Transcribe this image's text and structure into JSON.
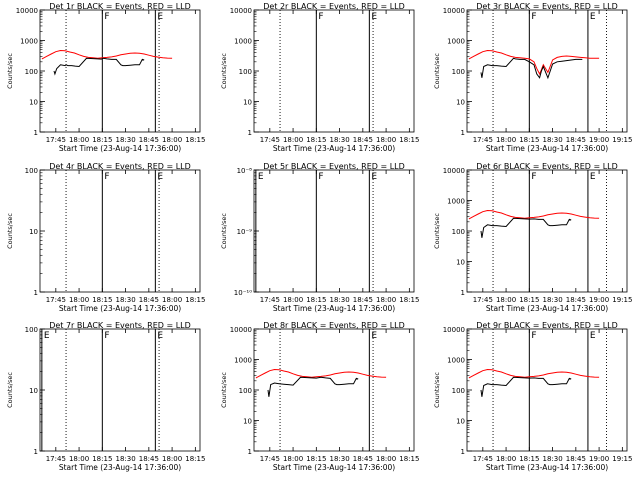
{
  "figure": {
    "xlabel": "Start Time (23-Aug-14 17:36:00)",
    "ylabel": "Counts/sec",
    "x_tick_labels_a": [
      "17:45",
      "18:00",
      "18:15",
      "18:30",
      "18:45",
      "19:00",
      "19:15"
    ],
    "x_tick_labels_b": [
      "17:45",
      "18:00",
      "18:15",
      "18:30",
      "18:45",
      "18:00",
      "18:15"
    ],
    "colors": {
      "events": "#000000",
      "lld": "#ff0000",
      "axes": "#000000"
    }
  },
  "chart_data": [
    {
      "type": "line",
      "title": "Det 1r BLACK = Events, RED = LLD",
      "xlim": [
        17.58,
        19.3
      ],
      "ylim": [
        1,
        10000
      ],
      "log_y": true,
      "y_tick_labels": [
        "10000",
        "1000",
        "100",
        "10",
        "1"
      ],
      "x_tick_set": "b",
      "has_data": true,
      "markers": [
        {
          "label": "F",
          "x": 18.25
        },
        {
          "label": "E",
          "x": 18.82
        }
      ],
      "dotted_lines": [
        17.86,
        18.86
      ],
      "events_series": {
        "name": "Events",
        "x": [
          17.73,
          17.74,
          17.76,
          17.8,
          17.85,
          17.86,
          17.88,
          17.92,
          17.96,
          18.0,
          18.08,
          18.15,
          18.2,
          18.24,
          18.26,
          18.3,
          18.35,
          18.4,
          18.45,
          18.47,
          18.5,
          18.55,
          18.6,
          18.65,
          18.68,
          18.7
        ],
        "y": [
          100,
          80,
          120,
          160,
          150,
          160,
          150,
          150,
          145,
          140,
          260,
          255,
          250,
          245,
          260,
          250,
          240,
          240,
          160,
          150,
          150,
          155,
          160,
          160,
          240,
          230
        ]
      },
      "lld_series": {
        "name": "LLD",
        "x": [
          17.6,
          17.65,
          17.7,
          17.75,
          17.8,
          17.85,
          17.9,
          17.95,
          18.0,
          18.05,
          18.1,
          18.15,
          18.2,
          18.25,
          18.3,
          18.35,
          18.4,
          18.45,
          18.5,
          18.55,
          18.6,
          18.65,
          18.7,
          18.75,
          18.8,
          18.85,
          18.9,
          18.95,
          19.0
        ],
        "y": [
          250,
          300,
          360,
          430,
          470,
          460,
          420,
          390,
          340,
          300,
          280,
          270,
          260,
          270,
          280,
          290,
          310,
          340,
          360,
          380,
          390,
          380,
          360,
          330,
          300,
          285,
          270,
          265,
          260
        ]
      }
    },
    {
      "type": "line",
      "title": "Det 2r BLACK = Events, RED = LLD",
      "xlim": [
        17.58,
        19.3
      ],
      "ylim": [
        1,
        10000
      ],
      "log_y": true,
      "y_tick_labels": [
        "10000",
        "1000",
        "100",
        "10",
        "1"
      ],
      "x_tick_set": "b",
      "has_data": false,
      "markers": [
        {
          "label": "F",
          "x": 18.25
        },
        {
          "label": "E",
          "x": 18.82
        }
      ],
      "dotted_lines": [
        17.86,
        18.86
      ]
    },
    {
      "type": "line",
      "title": "Det 3r BLACK = Events, RED = LLD",
      "xlim": [
        17.58,
        19.3
      ],
      "ylim": [
        1,
        10000
      ],
      "log_y": true,
      "y_tick_labels": [
        "10000",
        "1000",
        "100",
        "10",
        "1"
      ],
      "x_tick_set": "a",
      "has_data": true,
      "markers": [
        {
          "label": "F",
          "x": 18.25
        },
        {
          "label": "E",
          "x": 18.88
        }
      ],
      "dotted_lines": [
        17.86,
        19.08
      ],
      "events_series": {
        "name": "Events",
        "x": [
          17.73,
          17.74,
          17.76,
          17.8,
          17.85,
          17.9,
          17.95,
          18.0,
          18.08,
          18.1,
          18.15,
          18.2,
          18.25,
          18.3,
          18.33,
          18.36,
          18.38,
          18.4,
          18.45,
          18.5,
          18.55,
          18.6,
          18.65,
          18.7,
          18.75,
          18.82
        ],
        "y": [
          90,
          60,
          140,
          160,
          150,
          150,
          145,
          140,
          260,
          250,
          240,
          240,
          200,
          160,
          80,
          60,
          100,
          140,
          60,
          170,
          200,
          210,
          220,
          230,
          240,
          240
        ]
      },
      "lld_series": {
        "name": "LLD",
        "x": [
          17.6,
          17.65,
          17.7,
          17.75,
          17.8,
          17.85,
          17.9,
          17.95,
          18.0,
          18.05,
          18.1,
          18.15,
          18.2,
          18.25,
          18.3,
          18.33,
          18.36,
          18.38,
          18.4,
          18.45,
          18.5,
          18.55,
          18.6,
          18.65,
          18.7,
          18.75,
          18.8,
          18.85,
          18.9,
          18.95,
          19.0
        ],
        "y": [
          250,
          300,
          360,
          430,
          470,
          460,
          420,
          390,
          340,
          300,
          280,
          270,
          260,
          250,
          200,
          120,
          80,
          110,
          160,
          90,
          230,
          280,
          300,
          310,
          300,
          290,
          280,
          270,
          260,
          260,
          260
        ]
      }
    },
    {
      "type": "line",
      "title": "Det 4r BLACK = Events, RED = LLD",
      "xlim": [
        17.58,
        19.3
      ],
      "ylim": [
        1,
        100
      ],
      "log_y": true,
      "y_tick_labels": [
        "100",
        "10",
        "1"
      ],
      "x_tick_set": "b",
      "has_data": false,
      "markers": [
        {
          "label": "F",
          "x": 18.25
        },
        {
          "label": "E",
          "x": 18.82
        }
      ],
      "dotted_lines": [
        17.86,
        18.86
      ]
    },
    {
      "type": "line",
      "title": "Det 5r BLACK = Events, RED = LLD",
      "xlim": [
        17.58,
        19.3
      ],
      "ylim": [
        1e-10,
        1e-08
      ],
      "log_y": true,
      "y_tick_labels": [
        "10⁻⁸",
        "10⁻⁹",
        "10⁻¹⁰"
      ],
      "x_tick_set": "b",
      "has_data": false,
      "markers": [
        {
          "label": "E",
          "x": 17.6
        },
        {
          "label": "F",
          "x": 18.25
        },
        {
          "label": "E",
          "x": 18.82
        }
      ],
      "dotted_lines": [
        18.86
      ]
    },
    {
      "type": "line",
      "title": "Det 6r BLACK = Events, RED = LLD",
      "xlim": [
        17.58,
        19.3
      ],
      "ylim": [
        1,
        10000
      ],
      "log_y": true,
      "y_tick_labels": [
        "10000",
        "1000",
        "100",
        "10",
        "1"
      ],
      "x_tick_set": "a",
      "has_data": true,
      "markers": [
        {
          "label": "F",
          "x": 18.25
        },
        {
          "label": "E",
          "x": 18.88
        }
      ],
      "dotted_lines": [
        17.86,
        19.08
      ],
      "events_series": {
        "name": "Events",
        "x": [
          17.73,
          17.74,
          17.76,
          17.8,
          17.85,
          17.9,
          17.95,
          18.0,
          18.08,
          18.15,
          18.2,
          18.25,
          18.3,
          18.35,
          18.4,
          18.45,
          18.47,
          18.5,
          18.55,
          18.6,
          18.65,
          18.68,
          18.7
        ],
        "y": [
          100,
          60,
          130,
          160,
          150,
          150,
          145,
          140,
          260,
          255,
          250,
          245,
          250,
          240,
          240,
          160,
          150,
          150,
          155,
          160,
          160,
          240,
          230
        ]
      },
      "lld_series": {
        "name": "LLD",
        "x": [
          17.6,
          17.65,
          17.7,
          17.75,
          17.8,
          17.85,
          17.9,
          17.95,
          18.0,
          18.05,
          18.1,
          18.15,
          18.2,
          18.25,
          18.3,
          18.35,
          18.4,
          18.45,
          18.5,
          18.55,
          18.6,
          18.65,
          18.7,
          18.75,
          18.8,
          18.85,
          18.9,
          18.95,
          19.0
        ],
        "y": [
          250,
          300,
          360,
          430,
          470,
          460,
          420,
          390,
          340,
          300,
          280,
          270,
          260,
          270,
          280,
          290,
          310,
          340,
          360,
          380,
          390,
          380,
          360,
          330,
          300,
          285,
          270,
          265,
          260
        ]
      }
    },
    {
      "type": "line",
      "title": "Det 7r BLACK = Events, RED = LLD",
      "xlim": [
        17.58,
        19.3
      ],
      "ylim": [
        1,
        100
      ],
      "log_y": true,
      "y_tick_labels": [
        "100",
        "10",
        "1"
      ],
      "x_tick_set": "b",
      "has_data": false,
      "markers": [
        {
          "label": "E",
          "x": 17.6
        },
        {
          "label": "F",
          "x": 18.25
        },
        {
          "label": "E",
          "x": 18.82
        }
      ],
      "dotted_lines": [
        17.86,
        18.86
      ]
    },
    {
      "type": "line",
      "title": "Det 8r BLACK = Events, RED = LLD",
      "xlim": [
        17.58,
        19.3
      ],
      "ylim": [
        1,
        10000
      ],
      "log_y": true,
      "y_tick_labels": [
        "10000",
        "1000",
        "100",
        "10",
        "1"
      ],
      "x_tick_set": "b",
      "has_data": true,
      "markers": [
        {
          "label": "E",
          "x": 18.82
        }
      ],
      "dotted_lines": [
        17.86,
        18.86
      ],
      "events_series": {
        "name": "Events",
        "x": [
          17.73,
          17.74,
          17.76,
          17.8,
          17.85,
          17.9,
          17.95,
          18.0,
          18.08,
          18.15,
          18.2,
          18.25,
          18.3,
          18.35,
          18.4,
          18.45,
          18.47,
          18.5,
          18.55,
          18.6,
          18.65,
          18.68,
          18.7
        ],
        "y": [
          100,
          60,
          150,
          170,
          160,
          155,
          150,
          145,
          260,
          255,
          250,
          245,
          260,
          250,
          240,
          160,
          150,
          150,
          155,
          160,
          160,
          240,
          230
        ]
      },
      "lld_series": {
        "name": "LLD",
        "x": [
          17.6,
          17.65,
          17.7,
          17.75,
          17.8,
          17.85,
          17.9,
          17.95,
          18.0,
          18.05,
          18.1,
          18.15,
          18.2,
          18.25,
          18.3,
          18.35,
          18.4,
          18.45,
          18.5,
          18.55,
          18.6,
          18.65,
          18.7,
          18.75,
          18.8,
          18.85,
          18.9,
          18.95,
          19.0
        ],
        "y": [
          250,
          300,
          360,
          430,
          470,
          460,
          420,
          390,
          340,
          300,
          280,
          270,
          260,
          270,
          280,
          290,
          310,
          340,
          360,
          380,
          390,
          380,
          360,
          330,
          300,
          285,
          270,
          265,
          260
        ]
      }
    },
    {
      "type": "line",
      "title": "Det 9r BLACK = Events, RED = LLD",
      "xlim": [
        17.58,
        19.3
      ],
      "ylim": [
        1,
        10000
      ],
      "log_y": true,
      "y_tick_labels": [
        "10000",
        "1000",
        "100",
        "10",
        "1"
      ],
      "x_tick_set": "a",
      "has_data": true,
      "markers": [
        {
          "label": "F",
          "x": 18.25
        },
        {
          "label": "E",
          "x": 18.88
        }
      ],
      "dotted_lines": [
        17.86,
        19.08
      ],
      "events_series": {
        "name": "Events",
        "x": [
          17.73,
          17.74,
          17.76,
          17.8,
          17.85,
          17.9,
          17.95,
          18.0,
          18.08,
          18.15,
          18.2,
          18.25,
          18.3,
          18.35,
          18.4,
          18.45,
          18.47,
          18.5,
          18.55,
          18.6,
          18.65,
          18.68,
          18.7
        ],
        "y": [
          100,
          60,
          140,
          160,
          150,
          150,
          145,
          140,
          260,
          255,
          250,
          245,
          250,
          240,
          240,
          160,
          150,
          150,
          155,
          160,
          160,
          240,
          230
        ]
      },
      "lld_series": {
        "name": "LLD",
        "x": [
          17.6,
          17.65,
          17.7,
          17.75,
          17.8,
          17.85,
          17.9,
          17.95,
          18.0,
          18.05,
          18.1,
          18.15,
          18.2,
          18.25,
          18.3,
          18.35,
          18.4,
          18.45,
          18.5,
          18.55,
          18.6,
          18.65,
          18.7,
          18.75,
          18.8,
          18.85,
          18.9,
          18.95,
          19.0
        ],
        "y": [
          250,
          300,
          360,
          430,
          470,
          460,
          420,
          390,
          340,
          300,
          280,
          270,
          260,
          270,
          280,
          290,
          310,
          340,
          360,
          380,
          390,
          380,
          360,
          330,
          300,
          285,
          270,
          265,
          260
        ]
      }
    }
  ]
}
